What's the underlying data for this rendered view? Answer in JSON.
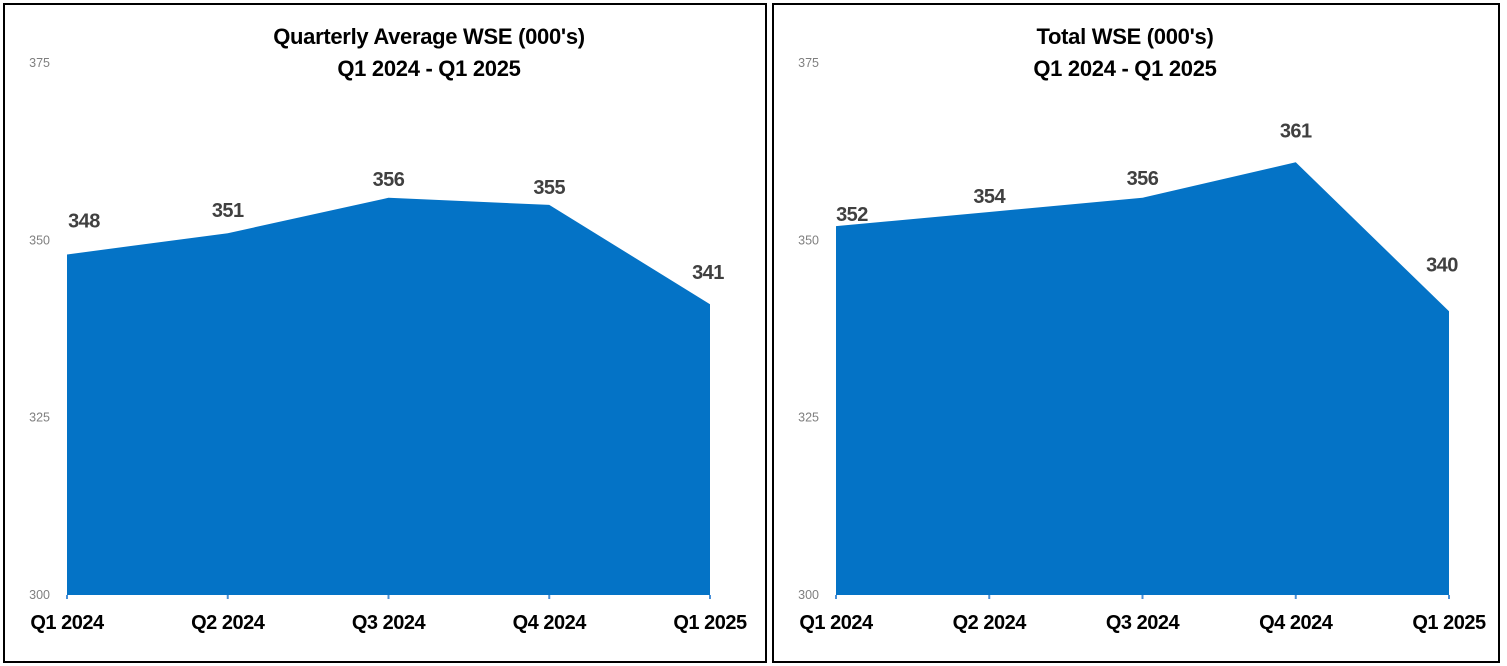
{
  "page": {
    "background_color": "#FFFFFF",
    "panel_border_color": "#000000"
  },
  "chart_data": [
    {
      "type": "area",
      "title": "Quarterly Average WSE (000's)",
      "subtitle": "Q1 2024 - Q1 2025",
      "categories": [
        "Q1 2024",
        "Q2 2024",
        "Q3 2024",
        "Q4 2024",
        "Q1 2025"
      ],
      "values": [
        348,
        351,
        356,
        355,
        341
      ],
      "data_labels": [
        "348",
        "351",
        "356",
        "355",
        "341"
      ],
      "y_ticks": [
        "375",
        "350",
        "325",
        "300"
      ],
      "y_tick_values": [
        375,
        350,
        325,
        300
      ],
      "ylim": [
        300,
        375
      ],
      "xlabel": "",
      "ylabel": "",
      "grid": false,
      "legend": "none",
      "fill_color": "#0473C6",
      "data_label_color": "#404040",
      "axis_tick_label_color": "#7F7F7F",
      "category_label_color": "#000000",
      "tick_mark_color": "#4A90D8"
    },
    {
      "type": "area",
      "title": "Total WSE (000's)",
      "subtitle": "Q1 2024 - Q1 2025",
      "categories": [
        "Q1 2024",
        "Q2 2024",
        "Q3 2024",
        "Q4 2024",
        "Q1 2025"
      ],
      "values": [
        352,
        354,
        356,
        361,
        340
      ],
      "data_labels": [
        "352",
        "354",
        "356",
        "361",
        "340"
      ],
      "y_ticks": [
        "375",
        "350",
        "325",
        "300"
      ],
      "y_tick_values": [
        375,
        350,
        325,
        300
      ],
      "ylim": [
        300,
        375
      ],
      "xlabel": "",
      "ylabel": "",
      "grid": false,
      "legend": "none",
      "fill_color": "#0473C6",
      "data_label_color": "#404040",
      "axis_tick_label_color": "#7F7F7F",
      "category_label_color": "#000000",
      "tick_mark_color": "#4A90D8"
    }
  ]
}
